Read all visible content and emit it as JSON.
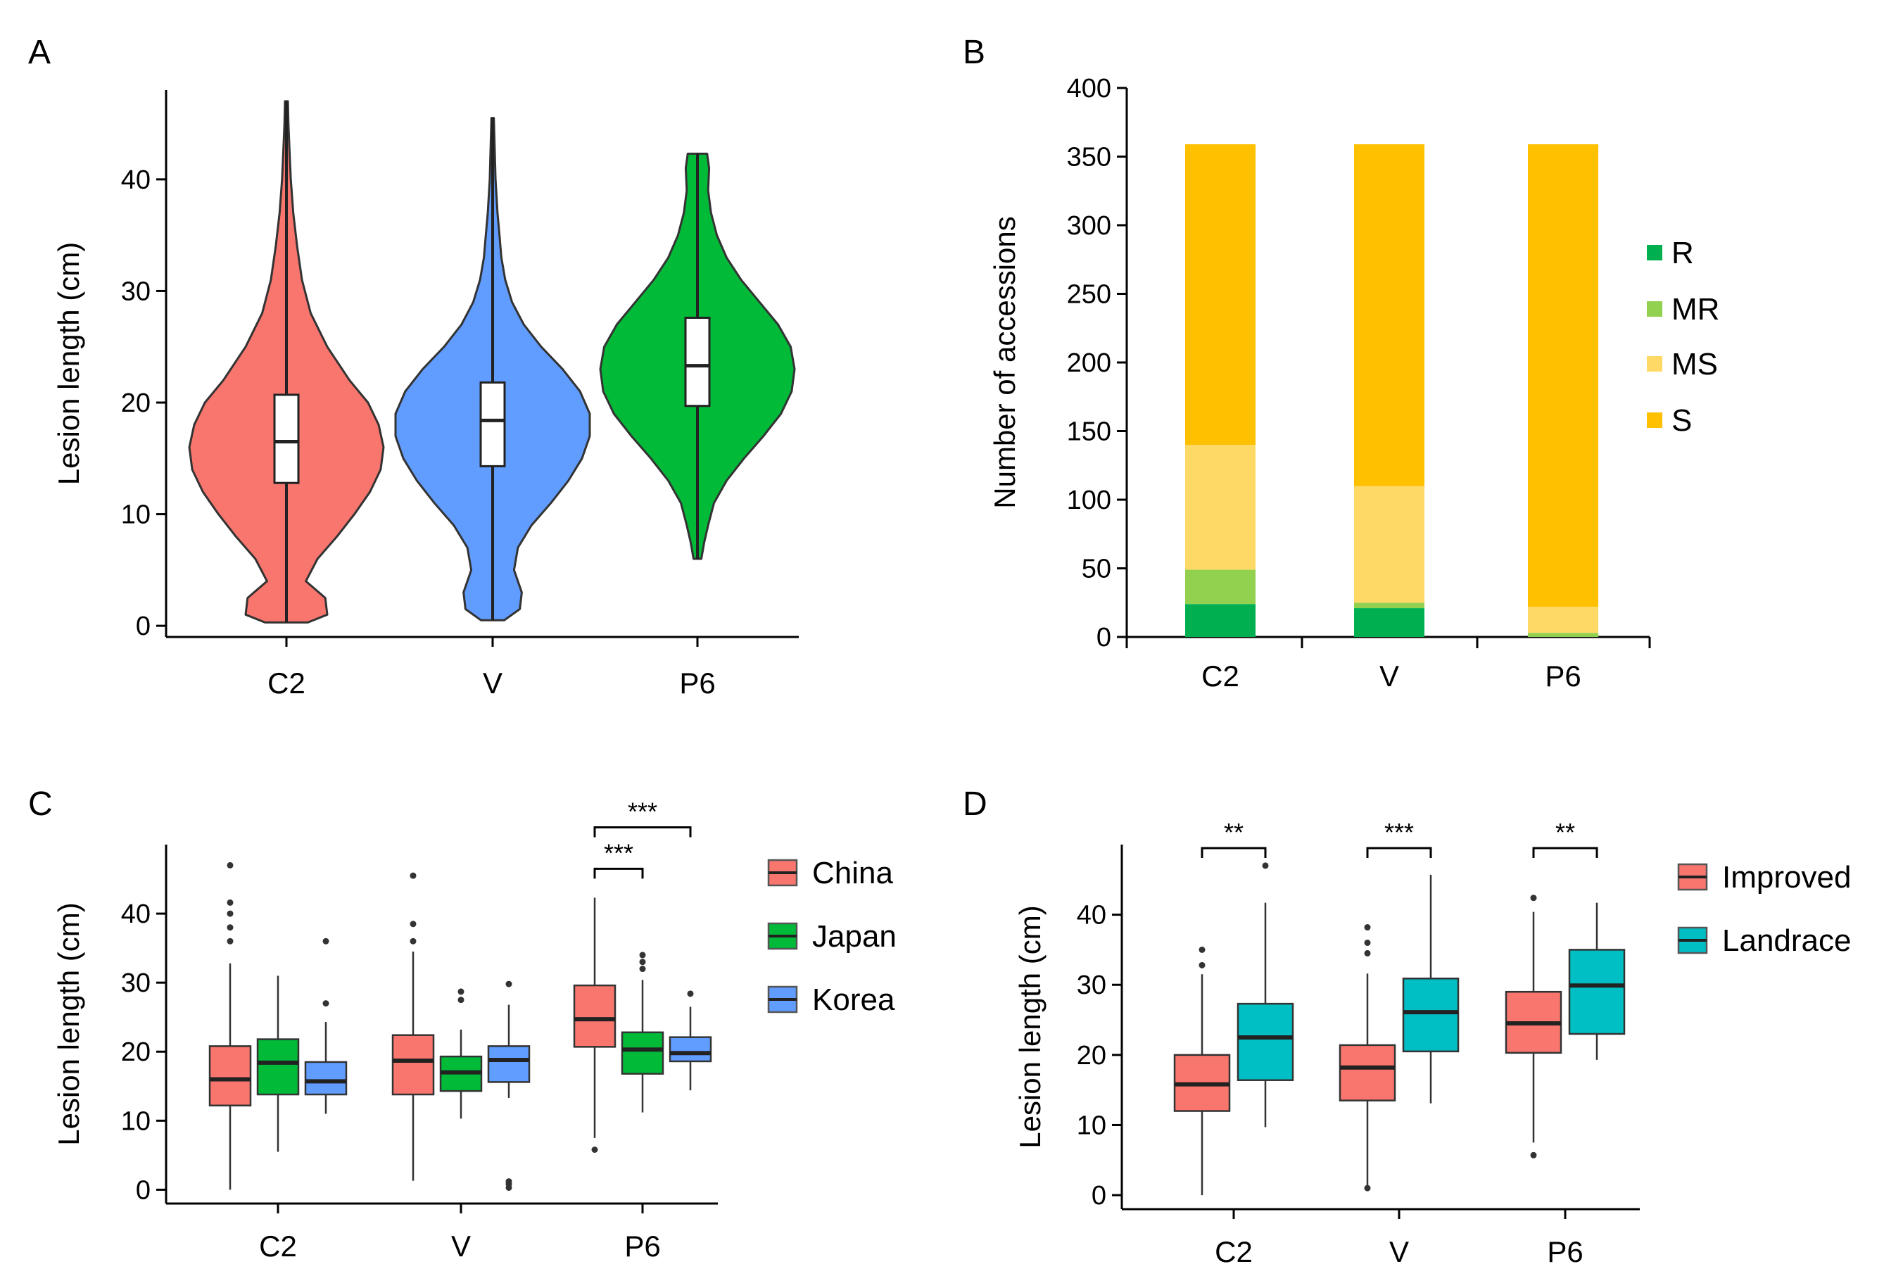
{
  "panels": {
    "A": {
      "label": "A"
    },
    "B": {
      "label": "B"
    },
    "C": {
      "label": "C"
    },
    "D": {
      "label": "D"
    }
  },
  "colors": {
    "red": "#F8766D",
    "blue": "#619CFF",
    "green": "#00BA38",
    "teal": "#00BFC4",
    "R": "#00B050",
    "MR": "#92D050",
    "MS": "#FFD966",
    "S": "#FFC000"
  },
  "chart_data": [
    {
      "panel": "A",
      "type": "violin",
      "categories": [
        "C2",
        "V",
        "P6"
      ],
      "ylabel": "Lesion length (cm)",
      "ylim": [
        -1,
        48
      ],
      "yticks": [
        0,
        10,
        20,
        30,
        40
      ],
      "series": [
        {
          "name": "C2",
          "color_key": "red",
          "min": 0.3,
          "q1": 12.8,
          "median": 16.5,
          "q3": 20.7,
          "max": 47,
          "density": [
            [
              0.3,
              0.22
            ],
            [
              1,
              0.42
            ],
            [
              2.5,
              0.4
            ],
            [
              4,
              0.2
            ],
            [
              6,
              0.32
            ],
            [
              8,
              0.52
            ],
            [
              10,
              0.7
            ],
            [
              12,
              0.86
            ],
            [
              14,
              0.97
            ],
            [
              16,
              1.0
            ],
            [
              18,
              0.95
            ],
            [
              20,
              0.84
            ],
            [
              22,
              0.65
            ],
            [
              25,
              0.42
            ],
            [
              28,
              0.25
            ],
            [
              31,
              0.16
            ],
            [
              34,
              0.11
            ],
            [
              37,
              0.07
            ],
            [
              40,
              0.045
            ],
            [
              43,
              0.03
            ],
            [
              45,
              0.02
            ],
            [
              47,
              0.015
            ]
          ]
        },
        {
          "name": "V",
          "color_key": "blue",
          "min": 0.5,
          "q1": 14.3,
          "median": 18.4,
          "q3": 21.8,
          "max": 45.5,
          "density": [
            [
              0.5,
              0.12
            ],
            [
              1.5,
              0.28
            ],
            [
              3,
              0.3
            ],
            [
              5,
              0.22
            ],
            [
              7,
              0.26
            ],
            [
              9,
              0.4
            ],
            [
              11,
              0.6
            ],
            [
              13,
              0.78
            ],
            [
              15,
              0.92
            ],
            [
              17,
              1.0
            ],
            [
              19,
              1.0
            ],
            [
              21,
              0.9
            ],
            [
              23,
              0.72
            ],
            [
              25,
              0.5
            ],
            [
              27,
              0.32
            ],
            [
              29,
              0.2
            ],
            [
              31,
              0.13
            ],
            [
              33,
              0.09
            ],
            [
              35,
              0.07
            ],
            [
              37,
              0.05
            ],
            [
              40,
              0.03
            ],
            [
              43,
              0.02
            ],
            [
              45.5,
              0.012
            ]
          ]
        },
        {
          "name": "P6",
          "color_key": "green",
          "min": 6,
          "q1": 19.7,
          "median": 23.3,
          "q3": 27.6,
          "max": 42.3,
          "density": [
            [
              6,
              0.04
            ],
            [
              7.5,
              0.07
            ],
            [
              9,
              0.11
            ],
            [
              11,
              0.17
            ],
            [
              13,
              0.3
            ],
            [
              15,
              0.48
            ],
            [
              17,
              0.68
            ],
            [
              19,
              0.86
            ],
            [
              21,
              0.97
            ],
            [
              23,
              1.0
            ],
            [
              25,
              0.96
            ],
            [
              27,
              0.83
            ],
            [
              29,
              0.64
            ],
            [
              31,
              0.45
            ],
            [
              33,
              0.3
            ],
            [
              35,
              0.2
            ],
            [
              37,
              0.14
            ],
            [
              39,
              0.11
            ],
            [
              41,
              0.12
            ],
            [
              42.3,
              0.1
            ]
          ]
        }
      ]
    },
    {
      "panel": "B",
      "type": "bar",
      "stacked": true,
      "categories": [
        "C2",
        "V",
        "P6"
      ],
      "ylabel": "Number of accessions",
      "ylim": [
        0,
        400
      ],
      "yticks": [
        0,
        50,
        100,
        150,
        200,
        250,
        300,
        350,
        400
      ],
      "series": [
        {
          "name": "R",
          "color_key": "R",
          "values": [
            24,
            21,
            0
          ]
        },
        {
          "name": "MR",
          "color_key": "MR",
          "values": [
            25,
            4,
            3
          ]
        },
        {
          "name": "MS",
          "color_key": "MS",
          "values": [
            91,
            85,
            19
          ]
        },
        {
          "name": "S",
          "color_key": "S",
          "values": [
            219,
            249,
            337
          ]
        }
      ],
      "legend": [
        "R",
        "MR",
        "MS",
        "S"
      ]
    },
    {
      "panel": "C",
      "type": "boxplot",
      "categories": [
        "C2",
        "V",
        "P6"
      ],
      "ylabel": "Lesion length (cm)",
      "ylim": [
        -2,
        50
      ],
      "yticks": [
        0,
        10,
        20,
        30,
        40
      ],
      "groups": [
        "China",
        "Japan",
        "Korea"
      ],
      "group_colors": [
        "red",
        "green",
        "blue"
      ],
      "boxes": [
        [
          {
            "min": 0,
            "q1": 12.2,
            "median": 16,
            "q3": 20.8,
            "max": 32.8,
            "outliers": [
              36,
              38,
              40,
              41.6,
              47
            ]
          },
          {
            "min": 5.5,
            "q1": 13.8,
            "median": 18.4,
            "q3": 21.8,
            "max": 31,
            "outliers": []
          },
          {
            "min": 11,
            "q1": 13.8,
            "median": 15.7,
            "q3": 18.5,
            "max": 24.3,
            "outliers": [
              27,
              36
            ]
          }
        ],
        [
          {
            "min": 1.3,
            "q1": 13.8,
            "median": 18.7,
            "q3": 22.4,
            "max": 34.5,
            "outliers": [
              36,
              38.5,
              45.5
            ]
          },
          {
            "min": 10.3,
            "q1": 14.3,
            "median": 17,
            "q3": 19.3,
            "max": 23.2,
            "outliers": [
              27.5,
              28.7
            ]
          },
          {
            "min": 13.3,
            "q1": 15.6,
            "median": 18.8,
            "q3": 20.8,
            "max": 26.8,
            "outliers": [
              0.3,
              0.8,
              1.2,
              29.8
            ]
          }
        ],
        [
          {
            "min": 7.5,
            "q1": 20.7,
            "median": 24.7,
            "q3": 29.6,
            "max": 42.3,
            "outliers": [
              5.8
            ]
          },
          {
            "min": 11.2,
            "q1": 16.8,
            "median": 20.3,
            "q3": 22.8,
            "max": 30.4,
            "outliers": [
              32,
              33,
              34
            ]
          },
          {
            "min": 14.4,
            "q1": 18.6,
            "median": 19.8,
            "q3": 22.1,
            "max": 26.5,
            "outliers": [
              28.4
            ]
          }
        ]
      ],
      "sig_brackets": [
        {
          "cat": 2,
          "from": 0,
          "to": 1,
          "y": 46.5,
          "label": "***"
        },
        {
          "cat": 2,
          "from": 0,
          "to": 2,
          "y": 52.5,
          "label": "***"
        }
      ]
    },
    {
      "panel": "D",
      "type": "boxplot",
      "categories": [
        "C2",
        "V",
        "P6"
      ],
      "ylabel": "Lesion length (cm)",
      "ylim": [
        -2,
        50
      ],
      "yticks": [
        0,
        10,
        20,
        30,
        40
      ],
      "groups": [
        "Improved",
        "Landrace"
      ],
      "group_colors": [
        "red",
        "teal"
      ],
      "boxes": [
        [
          {
            "min": 0,
            "q1": 12,
            "median": 15.8,
            "q3": 20,
            "max": 31.5,
            "outliers": [
              32.8,
              35
            ]
          },
          {
            "min": 9.7,
            "q1": 16.4,
            "median": 22.5,
            "q3": 27.3,
            "max": 41.7,
            "outliers": [
              47
            ]
          }
        ],
        [
          {
            "min": 1.3,
            "q1": 13.5,
            "median": 18.2,
            "q3": 21.4,
            "max": 31.6,
            "outliers": [
              1,
              34.5,
              36,
              38.2
            ]
          },
          {
            "min": 13.1,
            "q1": 20.5,
            "median": 26.1,
            "q3": 30.9,
            "max": 45.7,
            "outliers": []
          }
        ],
        [
          {
            "min": 7.5,
            "q1": 20.3,
            "median": 24.5,
            "q3": 29,
            "max": 40.4,
            "outliers": [
              5.7,
              42.4
            ]
          },
          {
            "min": 19.3,
            "q1": 23,
            "median": 29.9,
            "q3": 35,
            "max": 41.7,
            "outliers": []
          }
        ]
      ],
      "sig_brackets": [
        {
          "cat": 0,
          "from": 0,
          "to": 1,
          "y": 49.5,
          "label": "**"
        },
        {
          "cat": 1,
          "from": 0,
          "to": 1,
          "y": 49.5,
          "label": "***"
        },
        {
          "cat": 2,
          "from": 0,
          "to": 1,
          "y": 49.5,
          "label": "**"
        }
      ]
    }
  ]
}
